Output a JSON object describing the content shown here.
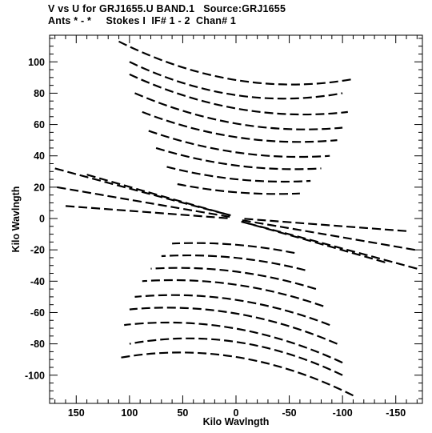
{
  "header": {
    "line1": "V vs U for GRJ1655.U BAND.1   Source:GRJ1655",
    "line2": "Ants * - *     Stokes I  IF# 1 - 2  Chan# 1"
  },
  "chart_data": {
    "type": "scatter",
    "xlabel": "Kilo Wavlngth",
    "ylabel": "Kilo Wavlngth",
    "xlim": [
      175,
      -175
    ],
    "ylim": [
      -118,
      117
    ],
    "x_ticks": [
      150,
      100,
      50,
      0,
      -50,
      -100,
      -150
    ],
    "x_tick_labels": [
      "150",
      "100",
      "50",
      "0",
      "-50",
      "-100",
      "-150"
    ],
    "y_ticks": [
      100,
      80,
      60,
      40,
      20,
      0,
      -20,
      -40,
      -60,
      -80,
      -100
    ],
    "y_tick_labels": [
      "100",
      "80",
      "60",
      "40",
      "20",
      "0",
      "-20",
      "-40",
      "-60",
      "-80",
      "-100"
    ],
    "grid": false,
    "legend": "none",
    "color": "#000000",
    "series": [
      {
        "values": [
          {
            "u0": 110,
            "v0": 113,
            "u1": -110,
            "v1": 89
          },
          {
            "u0": 100,
            "v0": 100,
            "u1": -100,
            "v1": 80
          },
          {
            "u0": 100,
            "v0": 92,
            "u1": -105,
            "v1": 68
          },
          {
            "u0": 95,
            "v0": 80,
            "u1": -100,
            "v1": 58
          },
          {
            "u0": 88,
            "v0": 68,
            "u1": -95,
            "v1": 50
          },
          {
            "u0": 82,
            "v0": 56,
            "u1": -88,
            "v1": 40
          },
          {
            "u0": 75,
            "v0": 45,
            "u1": -80,
            "v1": 32
          },
          {
            "u0": 65,
            "v0": 33,
            "u1": -70,
            "v1": 24
          },
          {
            "u0": 55,
            "v0": 22,
            "u1": -60,
            "v1": 16
          },
          {
            "u0": -110,
            "v0": -113,
            "u1": 110,
            "v1": -89
          },
          {
            "u0": -100,
            "v0": -100,
            "u1": 100,
            "v1": -80
          },
          {
            "u0": -100,
            "v0": -92,
            "u1": 105,
            "v1": -68
          },
          {
            "u0": -95,
            "v0": -80,
            "u1": 100,
            "v1": -58
          },
          {
            "u0": -88,
            "v0": -68,
            "u1": 95,
            "v1": -50
          },
          {
            "u0": -82,
            "v0": -56,
            "u1": 88,
            "v1": -40
          },
          {
            "u0": -75,
            "v0": -45,
            "u1": 80,
            "v1": -32
          },
          {
            "u0": -65,
            "v0": -33,
            "u1": 70,
            "v1": -24
          },
          {
            "u0": -55,
            "v0": -22,
            "u1": 60,
            "v1": -16
          },
          {
            "u0": 170,
            "v0": 32,
            "u1": 5,
            "v1": 2
          },
          {
            "u0": 168,
            "v0": 20,
            "u1": 5,
            "v1": 1
          },
          {
            "u0": 160,
            "v0": 8,
            "u1": 5,
            "v1": 0
          },
          {
            "u0": 140,
            "v0": 28,
            "u1": 5,
            "v1": 2
          },
          {
            "u0": -170,
            "v0": -32,
            "u1": -5,
            "v1": -2
          },
          {
            "u0": -168,
            "v0": -20,
            "u1": -5,
            "v1": -1
          },
          {
            "u0": -160,
            "v0": -8,
            "u1": -5,
            "v1": 0
          },
          {
            "u0": -140,
            "v0": -28,
            "u1": -5,
            "v1": -2
          }
        ]
      }
    ]
  }
}
